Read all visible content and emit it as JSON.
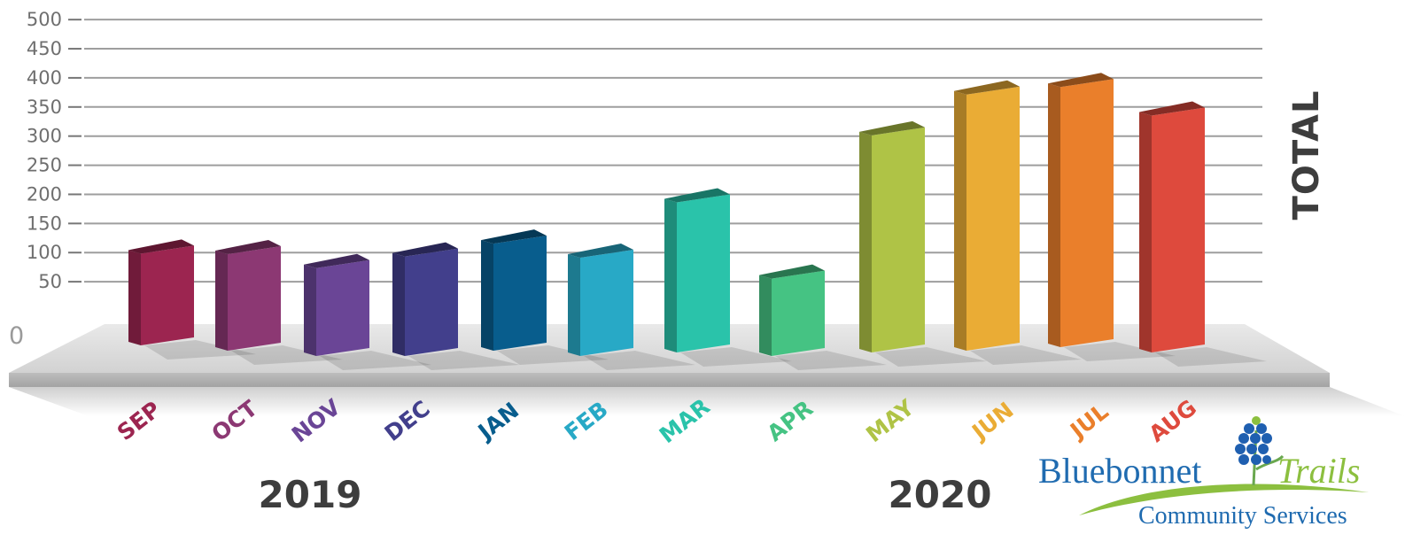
{
  "chart_data": {
    "type": "bar",
    "ylabel": "TOTAL",
    "ylim": [
      0,
      500
    ],
    "yticks": [
      "500",
      "450",
      "400",
      "350",
      "300",
      "250",
      "200",
      "150",
      "100",
      "50"
    ],
    "ytick_values": [
      500,
      450,
      400,
      350,
      300,
      250,
      200,
      150,
      100,
      50
    ],
    "zero_label": "0",
    "categories": [
      "SEP",
      "OCT",
      "NOV",
      "DEC",
      "JAN",
      "FEB",
      "MAR",
      "APR",
      "MAY",
      "JUN",
      "JUL",
      "AUG"
    ],
    "values": [
      112,
      111,
      87,
      107,
      129,
      105,
      200,
      69,
      315,
      385,
      398,
      349
    ],
    "colors": [
      "#9c2550",
      "#8c3873",
      "#6a4596",
      "#423f8c",
      "#085d8d",
      "#28a9c6",
      "#2ac3aa",
      "#45c383",
      "#afc346",
      "#eaac35",
      "#ea7f2b",
      "#de4a3d"
    ],
    "years": [
      {
        "label": "2019",
        "months": [
          "SEP",
          "OCT",
          "NOV",
          "DEC"
        ]
      },
      {
        "label": "2020",
        "months": [
          "JAN",
          "FEB",
          "MAR",
          "APR",
          "MAY",
          "JUN",
          "JUL",
          "AUG"
        ]
      }
    ],
    "grid": true,
    "style": "3d-bars"
  },
  "logo": {
    "name_part1": "Bluebonnet",
    "name_part2": "Trails",
    "subtitle": "Community Services",
    "colors": {
      "blue": "#1f6bb0",
      "green": "#8cbf3f"
    }
  }
}
